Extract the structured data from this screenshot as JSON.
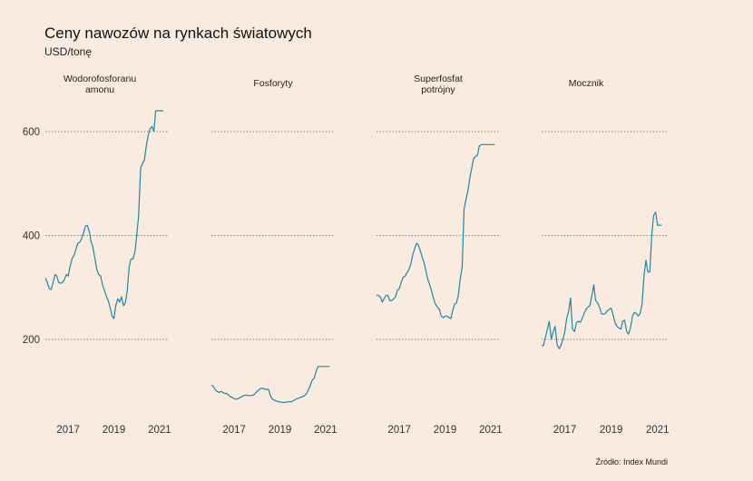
{
  "title": "Ceny nawozów na rynkach światowych",
  "subtitle": "USD/tonę",
  "source": "Źródło: Index Mundi",
  "colors": {
    "line": "#1f86a6",
    "background": "#faebe0",
    "grid": "#666666"
  },
  "chart_data": {
    "type": "line",
    "title": "Ceny nawozów na rynkach światowych",
    "subtitle": "USD/tonę",
    "ylabel": "",
    "xlabel": "",
    "ylim": [
      60,
      650
    ],
    "y_ticks": [
      200,
      400,
      600
    ],
    "x_ticks": [
      "2017",
      "2019",
      "2021"
    ],
    "xlim": [
      2016.0,
      2021.4
    ],
    "grid": "horizontal dotted",
    "legend": "none",
    "facets": [
      {
        "name": "Wodorofosforanu amonu",
        "title_lines": [
          "Wodorofosforanu",
          "amonu"
        ],
        "x": [
          2016.0,
          2016.08,
          2016.17,
          2016.25,
          2016.33,
          2016.42,
          2016.5,
          2016.58,
          2016.67,
          2016.75,
          2016.83,
          2016.92,
          2017.0,
          2017.08,
          2017.17,
          2017.25,
          2017.33,
          2017.42,
          2017.5,
          2017.58,
          2017.67,
          2017.75,
          2017.83,
          2017.92,
          2018.0,
          2018.08,
          2018.17,
          2018.25,
          2018.33,
          2018.42,
          2018.5,
          2018.58,
          2018.67,
          2018.75,
          2018.83,
          2018.92,
          2019.0,
          2019.08,
          2019.17,
          2019.25,
          2019.33,
          2019.42,
          2019.5,
          2019.58,
          2019.67,
          2019.75,
          2019.83,
          2019.92,
          2020.0,
          2020.08,
          2020.17,
          2020.25,
          2020.33,
          2020.42,
          2020.5,
          2020.58,
          2020.67,
          2020.75,
          2020.83,
          2020.92,
          2021.0,
          2021.08,
          2021.17
        ],
        "values": [
          318,
          310,
          298,
          296,
          308,
          325,
          322,
          310,
          308,
          310,
          315,
          325,
          322,
          340,
          356,
          362,
          372,
          385,
          387,
          393,
          405,
          418,
          420,
          408,
          388,
          378,
          355,
          335,
          325,
          322,
          305,
          295,
          283,
          275,
          262,
          245,
          240,
          265,
          278,
          272,
          282,
          265,
          270,
          292,
          340,
          355,
          355,
          368,
          400,
          438,
          530,
          538,
          545,
          573,
          592,
          605,
          610,
          600,
          640,
          640,
          640,
          640,
          640
        ]
      },
      {
        "name": "Fosforyty",
        "title_lines": [
          "Fosforyty"
        ],
        "x": [
          2016.0,
          2016.08,
          2016.17,
          2016.25,
          2016.33,
          2016.42,
          2016.5,
          2016.58,
          2016.67,
          2016.75,
          2016.83,
          2016.92,
          2017.0,
          2017.08,
          2017.17,
          2017.25,
          2017.33,
          2017.42,
          2017.5,
          2017.58,
          2017.67,
          2017.75,
          2017.83,
          2017.92,
          2018.0,
          2018.08,
          2018.17,
          2018.25,
          2018.33,
          2018.42,
          2018.5,
          2018.58,
          2018.67,
          2018.75,
          2018.83,
          2018.92,
          2019.0,
          2019.08,
          2019.17,
          2019.25,
          2019.33,
          2019.42,
          2019.5,
          2019.58,
          2019.67,
          2019.75,
          2019.83,
          2019.92,
          2020.0,
          2020.08,
          2020.17,
          2020.25,
          2020.33,
          2020.42,
          2020.5,
          2020.58,
          2020.67,
          2020.75,
          2020.83,
          2020.92,
          2021.0,
          2021.08,
          2021.17
        ],
        "values": [
          112,
          110,
          103,
          100,
          98,
          100,
          98,
          96,
          96,
          93,
          90,
          88,
          86,
          85,
          86,
          88,
          90,
          92,
          93,
          92,
          92,
          92,
          93,
          96,
          100,
          103,
          106,
          106,
          104,
          104,
          104,
          92,
          85,
          83,
          82,
          80,
          80,
          79,
          79,
          79,
          80,
          80,
          80,
          82,
          84,
          86,
          87,
          89,
          90,
          92,
          96,
          103,
          112,
          122,
          125,
          138,
          148,
          148,
          148,
          148,
          148,
          148,
          148
        ]
      },
      {
        "name": "Superfosfat potrójny",
        "title_lines": [
          "Superfosfat",
          "potrójny"
        ],
        "x": [
          2016.0,
          2016.08,
          2016.17,
          2016.25,
          2016.33,
          2016.42,
          2016.5,
          2016.58,
          2016.67,
          2016.75,
          2016.83,
          2016.92,
          2017.0,
          2017.08,
          2017.17,
          2017.25,
          2017.33,
          2017.42,
          2017.5,
          2017.58,
          2017.67,
          2017.75,
          2017.83,
          2017.92,
          2018.0,
          2018.08,
          2018.17,
          2018.25,
          2018.33,
          2018.42,
          2018.5,
          2018.58,
          2018.67,
          2018.75,
          2018.83,
          2018.92,
          2019.0,
          2019.08,
          2019.17,
          2019.25,
          2019.33,
          2019.42,
          2019.5,
          2019.58,
          2019.67,
          2019.75,
          2019.83,
          2019.92,
          2020.0,
          2020.08,
          2020.17,
          2020.25,
          2020.33,
          2020.42,
          2020.5,
          2020.58,
          2020.67,
          2020.75,
          2020.83,
          2020.92,
          2021.0,
          2021.08,
          2021.17
        ],
        "values": [
          285,
          285,
          282,
          272,
          278,
          285,
          285,
          275,
          275,
          278,
          282,
          295,
          298,
          310,
          320,
          322,
          328,
          335,
          345,
          362,
          375,
          385,
          382,
          370,
          358,
          348,
          330,
          315,
          305,
          292,
          278,
          268,
          262,
          258,
          245,
          242,
          245,
          245,
          242,
          240,
          255,
          268,
          270,
          285,
          318,
          338,
          450,
          470,
          485,
          510,
          530,
          548,
          552,
          555,
          572,
          575,
          575,
          575,
          575,
          575,
          575,
          575,
          575
        ]
      },
      {
        "name": "Mocznik",
        "title_lines": [
          "Mocznik"
        ],
        "x": [
          2016.0,
          2016.08,
          2016.17,
          2016.25,
          2016.33,
          2016.42,
          2016.5,
          2016.58,
          2016.67,
          2016.75,
          2016.83,
          2016.92,
          2017.0,
          2017.08,
          2017.17,
          2017.25,
          2017.33,
          2017.42,
          2017.5,
          2017.58,
          2017.67,
          2017.75,
          2017.83,
          2017.92,
          2018.0,
          2018.08,
          2018.17,
          2018.25,
          2018.33,
          2018.42,
          2018.5,
          2018.58,
          2018.67,
          2018.75,
          2018.83,
          2018.92,
          2019.0,
          2019.08,
          2019.17,
          2019.25,
          2019.33,
          2019.42,
          2019.5,
          2019.58,
          2019.67,
          2019.75,
          2019.83,
          2019.92,
          2020.0,
          2020.08,
          2020.17,
          2020.25,
          2020.33,
          2020.42,
          2020.5,
          2020.58,
          2020.67,
          2020.75,
          2020.83,
          2020.92,
          2021.0,
          2021.08,
          2021.17
        ],
        "values": [
          188,
          188,
          205,
          220,
          235,
          200,
          215,
          225,
          190,
          182,
          188,
          200,
          215,
          240,
          255,
          280,
          220,
          215,
          232,
          235,
          233,
          240,
          250,
          258,
          262,
          265,
          285,
          305,
          275,
          270,
          262,
          250,
          248,
          250,
          255,
          258,
          260,
          248,
          232,
          225,
          222,
          220,
          235,
          237,
          215,
          210,
          222,
          245,
          252,
          250,
          245,
          250,
          268,
          325,
          352,
          330,
          330,
          400,
          438,
          445,
          420,
          420,
          420
        ]
      }
    ]
  }
}
